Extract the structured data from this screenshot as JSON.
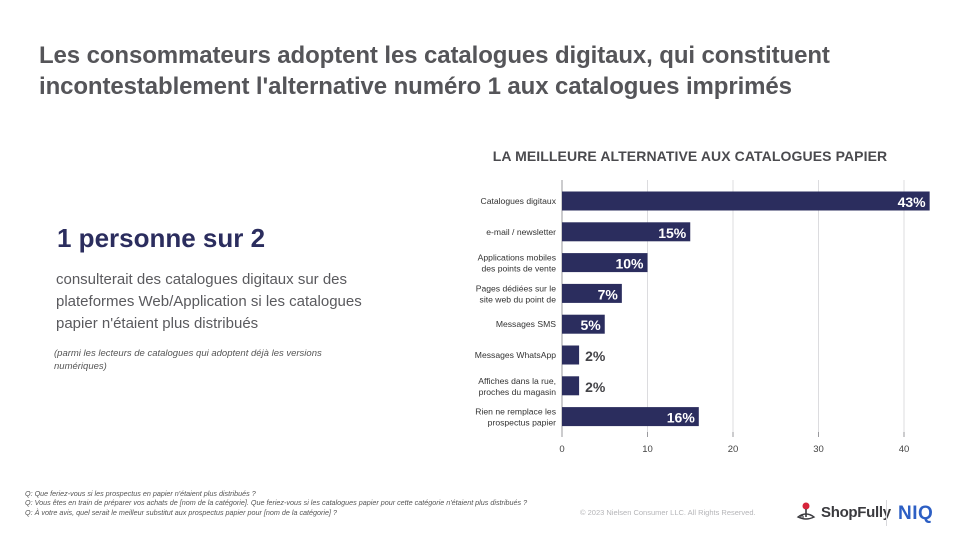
{
  "slide": {
    "title": "Les consommateurs adoptent les catalogues digitaux, qui constituent incontestablement l'alternative numéro 1 aux catalogues imprimés",
    "kpi": "1 personne sur 2",
    "description": "consulterait des catalogues digitaux sur des plateformes Web/Application si les catalogues papier n'étaient plus distribués",
    "note": "(parmi les lecteurs de catalogues qui adoptent déjà les versions numériques)",
    "footnotes": [
      "Q:  Que feriez-vous si les prospectus en papier n'étaient plus distribués ?",
      "Q: Vous êtes en train de préparer vos achats de [nom de la catégorie]. Que feriez-vous si les catalogues papier pour cette catégorie n'étaient plus distribués ?",
      "Q: À votre avis, quel serait le meilleur substitut aux prospectus papier pour [nom de la catégorie] ?"
    ],
    "copyright": "© 2023 Nielsen Consumer LLC. All Rights Reserved.",
    "logos": {
      "shopfully": "ShopFully",
      "niq": "NIQ"
    },
    "colors": {
      "bar": "#2b2d5e",
      "title": "#555559",
      "kpi": "#2b2d5e",
      "niq": "#2d5fc4",
      "shopfully_pin": "#d6243a"
    }
  },
  "chart_data": {
    "type": "bar",
    "orientation": "horizontal",
    "title": "LA MEILLEURE ALTERNATIVE AUX CATALOGUES PAPIER",
    "categories": [
      [
        "Catalogues digitaux"
      ],
      [
        "e-mail / newsletter"
      ],
      [
        "Applications mobiles",
        "des points de vente"
      ],
      [
        "Pages dédiées sur le",
        "site web du point de"
      ],
      [
        "Messages SMS"
      ],
      [
        "Messages WhatsApp"
      ],
      [
        "Affiches dans la rue,",
        "proches du magasin"
      ],
      [
        "Rien ne remplace les",
        "prospectus papier"
      ]
    ],
    "values": [
      43,
      15,
      10,
      7,
      5,
      2,
      2,
      16
    ],
    "data_labels": [
      "43%",
      "15%",
      "10%",
      "7%",
      "5%",
      "2%",
      "2%",
      "16%"
    ],
    "xlabel": "",
    "ylabel": "",
    "xlim": [
      0,
      45
    ],
    "xticks": [
      0,
      10,
      20,
      30,
      40
    ],
    "grid": true,
    "legend": "none"
  }
}
